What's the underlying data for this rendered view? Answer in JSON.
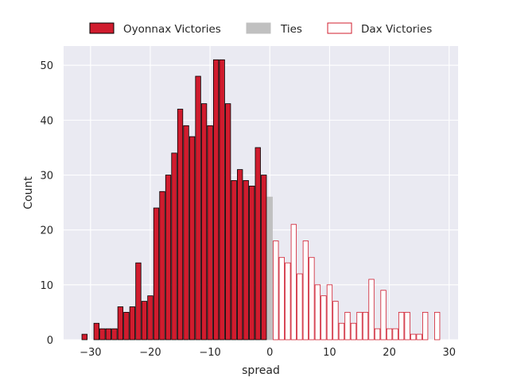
{
  "chart_data": {
    "type": "bar",
    "subtype": "histogram",
    "xlabel": "spread",
    "ylabel": "Count",
    "xlim": [
      -34.5,
      31.5
    ],
    "ylim": [
      0,
      53.5
    ],
    "xticks": [
      -30,
      -20,
      -10,
      0,
      10,
      20,
      30
    ],
    "yticks": [
      0,
      10,
      20,
      30,
      40,
      50
    ],
    "bin_width": 1,
    "grid": true,
    "legend_position": "top-center",
    "background": "#eaeaf2",
    "series": [
      {
        "name": "Oyonnax Victories",
        "fill": "#d01c2e",
        "edge": "#000000",
        "x": [
          -31,
          -29,
          -28,
          -27,
          -26,
          -25,
          -24,
          -23,
          -22,
          -21,
          -20,
          -19,
          -18,
          -17,
          -16,
          -15,
          -14,
          -13,
          -12,
          -11,
          -10,
          -9,
          -8,
          -7,
          -6,
          -5,
          -4,
          -3,
          -2,
          -1
        ],
        "values": [
          1,
          3,
          2,
          2,
          2,
          6,
          5,
          6,
          14,
          7,
          8,
          24,
          27,
          30,
          34,
          42,
          39,
          37,
          48,
          43,
          39,
          51,
          51,
          43,
          29,
          31,
          29,
          28,
          35,
          30
        ]
      },
      {
        "name": "Ties",
        "fill": "#c0c0c0",
        "edge": "#c0c0c0",
        "x": [
          0
        ],
        "values": [
          26
        ]
      },
      {
        "name": "Dax Victories",
        "fill": "#ffffff",
        "edge": "#d01c2e",
        "x": [
          1,
          2,
          3,
          4,
          5,
          6,
          7,
          8,
          9,
          10,
          11,
          12,
          13,
          14,
          15,
          16,
          17,
          18,
          19,
          20,
          21,
          22,
          23,
          24,
          25,
          26,
          28
        ],
        "values": [
          18,
          15,
          14,
          21,
          12,
          18,
          15,
          10,
          8,
          10,
          7,
          3,
          5,
          3,
          5,
          5,
          11,
          2,
          9,
          2,
          2,
          5,
          5,
          1,
          1,
          5,
          5
        ]
      }
    ]
  }
}
